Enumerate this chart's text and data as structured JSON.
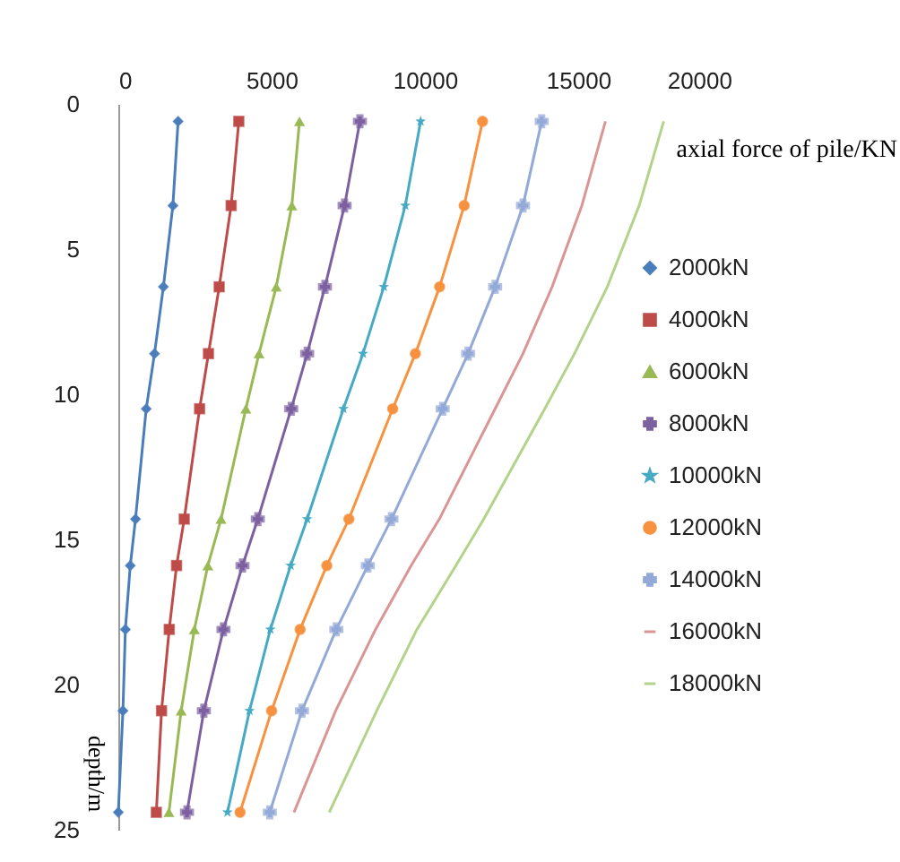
{
  "chart_data": {
    "type": "line",
    "xlabel": "axial force of pile/KN",
    "ylabel": "depth/m",
    "xlim": [
      0,
      20000
    ],
    "xticks": [
      0,
      5000,
      10000,
      15000,
      20000
    ],
    "ylim": [
      25,
      0
    ],
    "yticks": [
      0,
      5,
      10,
      15,
      20,
      25
    ],
    "grid": false,
    "legend": "right",
    "line_style": "solid",
    "series": [
      {
        "name": "2000kN",
        "color": "#4a7ebb",
        "marker": "diamond",
        "x": [
          1950,
          1780,
          1470,
          1180,
          910,
          560,
          390,
          230,
          150,
          0
        ],
        "values": [
          0.6,
          3.5,
          6.3,
          8.6,
          10.5,
          14.3,
          15.9,
          18.1,
          20.9,
          24.4
        ]
      },
      {
        "name": "4000kN",
        "color": "#be4b48",
        "marker": "square",
        "x": [
          3930,
          3680,
          3290,
          2940,
          2650,
          2150,
          1900,
          1660,
          1410,
          1240
        ],
        "values": [
          0.6,
          3.5,
          6.3,
          8.6,
          10.5,
          14.3,
          15.9,
          18.1,
          20.9,
          24.4
        ]
      },
      {
        "name": "6000kN",
        "color": "#98b954",
        "marker": "triangle",
        "x": [
          5910,
          5660,
          5150,
          4590,
          4160,
          3350,
          2920,
          2480,
          2050,
          1650
        ],
        "values": [
          0.6,
          3.5,
          6.3,
          8.6,
          10.5,
          14.3,
          15.9,
          18.1,
          20.9,
          24.4
        ]
      },
      {
        "name": "8000kN",
        "color": "#7d60a0",
        "marker": "cross",
        "x": [
          7880,
          7380,
          6740,
          6160,
          5640,
          4550,
          4050,
          3430,
          2790,
          2240
        ],
        "values": [
          0.6,
          3.5,
          6.3,
          8.6,
          10.5,
          14.3,
          15.9,
          18.1,
          20.9,
          24.4
        ]
      },
      {
        "name": "10000kN",
        "color": "#46aac5",
        "marker": "star",
        "x": [
          9860,
          9360,
          8660,
          7980,
          7340,
          6160,
          5620,
          4960,
          4280,
          3560
        ],
        "values": [
          0.6,
          3.5,
          6.3,
          8.6,
          10.5,
          14.3,
          15.9,
          18.1,
          20.9,
          24.4
        ]
      },
      {
        "name": "12000kN",
        "color": "#f69240",
        "marker": "circle",
        "x": [
          11880,
          11280,
          10480,
          9690,
          8950,
          7520,
          6800,
          5930,
          5000,
          3970
        ],
        "values": [
          0.6,
          3.5,
          6.3,
          8.6,
          10.5,
          14.3,
          15.9,
          18.1,
          20.9,
          24.4
        ]
      },
      {
        "name": "14000kN",
        "color": "#93a9d7",
        "marker": "cross",
        "x": [
          13810,
          13200,
          12290,
          11410,
          10580,
          8910,
          8140,
          7110,
          5990,
          4940
        ],
        "values": [
          0.6,
          3.5,
          6.3,
          8.6,
          10.5,
          14.3,
          15.9,
          18.1,
          20.9,
          24.4
        ]
      },
      {
        "name": "16000kN",
        "color": "#d99694",
        "marker": "none",
        "x": [
          15890,
          15120,
          14150,
          13200,
          12290,
          10470,
          9550,
          8390,
          7090,
          5730
        ],
        "values": [
          0.6,
          3.5,
          6.3,
          8.6,
          10.5,
          14.3,
          15.9,
          18.1,
          20.9,
          24.4
        ]
      },
      {
        "name": "18000kN",
        "color": "#b3d38a",
        "marker": "none",
        "x": [
          17790,
          16990,
          15950,
          14880,
          13910,
          11920,
          11010,
          9740,
          8430,
          6880
        ],
        "values": [
          0.6,
          3.5,
          6.3,
          8.6,
          10.5,
          14.3,
          15.9,
          18.1,
          20.9,
          24.4
        ]
      }
    ]
  }
}
